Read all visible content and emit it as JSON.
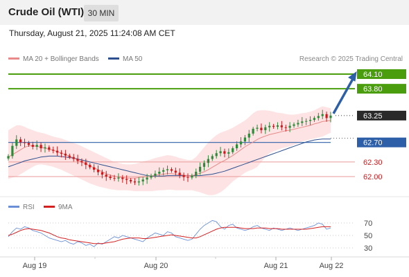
{
  "header": {
    "title": "Crude Oil (WTI)",
    "timeframe": "30 MIN"
  },
  "datetime": "Thursday, August 21, 2025 11:24:08 AM CET",
  "legend": {
    "ma20": {
      "label": "MA 20 + Bollinger Bands",
      "color": "#e88a8a"
    },
    "ma50": {
      "label": "MA 50",
      "color": "#2d4f8f"
    },
    "credit": "Research © 2025 Trading Central"
  },
  "rsi_legend": {
    "rsi": {
      "label": "RSI",
      "color": "#6a8fd8"
    },
    "ma9": {
      "label": "9MA",
      "color": "#d62020"
    }
  },
  "colors": {
    "up": "#2e8b3a",
    "down": "#d0181a",
    "band": "#fde3e3",
    "resistance": "#4a9e0d",
    "current": "#2a2a2a",
    "pivot": "#2d5fa8",
    "support": "#d0181a",
    "arrow": "#2d5fa8"
  },
  "chart_data": {
    "type": "candlestick",
    "y_range": [
      61.75,
      64.25
    ],
    "x_ticks": [
      "Aug 19",
      "Aug 20",
      "Aug 21",
      "Aug 22"
    ],
    "levels": [
      {
        "value": 64.1,
        "label": "64.10",
        "kind": "resistance"
      },
      {
        "value": 63.8,
        "label": "63.80",
        "kind": "resistance"
      },
      {
        "value": 63.25,
        "label": "63.25",
        "kind": "current"
      },
      {
        "value": 62.7,
        "label": "62.70",
        "kind": "pivot"
      },
      {
        "value": 62.3,
        "label": "62.30",
        "kind": "support"
      },
      {
        "value": 62.0,
        "label": "62.00",
        "kind": "support"
      }
    ],
    "prices": [
      62.42,
      62.63,
      62.76,
      62.7,
      62.69,
      62.65,
      62.61,
      62.65,
      62.58,
      62.6,
      62.55,
      62.53,
      62.49,
      62.47,
      62.43,
      62.4,
      62.36,
      62.32,
      62.29,
      62.24,
      62.19,
      62.14,
      62.09,
      62.04,
      62.0,
      61.97,
      61.96,
      61.98,
      61.95,
      61.93,
      61.9,
      61.88,
      61.9,
      61.94,
      61.98,
      62.02,
      62.06,
      62.1,
      62.13,
      62.15,
      62.12,
      62.08,
      62.03,
      61.99,
      61.98,
      62.02,
      62.1,
      62.2,
      62.28,
      62.36,
      62.42,
      62.48,
      62.52,
      62.47,
      62.5,
      62.58,
      62.66,
      62.72,
      62.8,
      62.88,
      62.98,
      63.0,
      62.95,
      63.01,
      63.04,
      63.02,
      63.05,
      63.01,
      63.0,
      63.04,
      63.07,
      63.1,
      63.13,
      63.14,
      63.16,
      63.2,
      63.24,
      63.28,
      63.2,
      63.25
    ],
    "ma20": [
      62.4,
      62.45,
      62.5,
      62.55,
      62.6,
      62.63,
      62.63,
      62.62,
      62.6,
      62.58,
      62.56,
      62.54,
      62.51,
      62.48,
      62.45,
      62.42,
      62.38,
      62.34,
      62.3,
      62.26,
      62.22,
      62.18,
      62.14,
      62.1,
      62.06,
      62.03,
      62.01,
      61.99,
      61.98,
      61.97,
      61.97,
      61.97,
      61.98,
      61.99,
      62.0,
      62.01,
      62.03,
      62.04,
      62.05,
      62.06,
      62.06,
      62.05,
      62.04,
      62.03,
      62.02,
      62.02,
      62.04,
      62.07,
      62.1,
      62.14,
      62.19,
      62.24,
      62.29,
      62.33,
      62.38,
      62.43,
      62.49,
      62.55,
      62.61,
      62.66,
      62.71,
      62.76,
      62.8,
      62.83,
      62.86,
      62.88,
      62.9,
      62.92,
      62.94,
      62.95,
      62.97,
      62.99,
      63.01,
      63.03,
      63.05,
      63.08,
      63.1,
      63.13,
      63.14,
      63.15
    ],
    "bb_upper": [
      62.95,
      63.0,
      63.05,
      63.05,
      63.02,
      62.98,
      62.95,
      62.92,
      62.9,
      62.88,
      62.85,
      62.82,
      62.8,
      62.78,
      62.75,
      62.72,
      62.69,
      62.66,
      62.62,
      62.58,
      62.54,
      62.5,
      62.46,
      62.42,
      62.38,
      62.34,
      62.3,
      62.28,
      62.26,
      62.25,
      62.25,
      62.26,
      62.28,
      62.31,
      62.33,
      62.35,
      62.38,
      62.4,
      62.42,
      62.44,
      62.43,
      62.41,
      62.38,
      62.36,
      62.34,
      62.34,
      62.4,
      62.5,
      62.6,
      62.7,
      62.78,
      62.85,
      62.9,
      62.93,
      62.96,
      63.0,
      63.05,
      63.1,
      63.15,
      63.22,
      63.3,
      63.35,
      63.36,
      63.36,
      63.35,
      63.33,
      63.31,
      63.3,
      63.28,
      63.27,
      63.27,
      63.28,
      63.3,
      63.31,
      63.33,
      63.36,
      63.4,
      63.44,
      63.42,
      63.4
    ],
    "bb_lower": [
      61.95,
      61.98,
      62.0,
      62.05,
      62.1,
      62.15,
      62.2,
      62.24,
      62.25,
      62.24,
      62.22,
      62.2,
      62.17,
      62.14,
      62.1,
      62.06,
      62.02,
      61.98,
      61.94,
      61.9,
      61.86,
      61.83,
      61.8,
      61.78,
      61.76,
      61.74,
      61.73,
      61.72,
      61.72,
      61.72,
      61.71,
      61.7,
      61.7,
      61.7,
      61.7,
      61.7,
      61.71,
      61.72,
      61.72,
      61.73,
      61.73,
      61.72,
      61.72,
      61.72,
      61.72,
      61.72,
      61.7,
      61.68,
      61.65,
      61.62,
      61.62,
      61.64,
      61.68,
      61.74,
      61.82,
      61.9,
      61.96,
      62.02,
      62.08,
      62.12,
      62.15,
      62.2,
      62.3,
      62.4,
      62.48,
      62.52,
      62.55,
      62.58,
      62.6,
      62.62,
      62.65,
      62.68,
      62.72,
      62.74,
      62.76,
      62.78,
      62.8,
      62.82,
      62.86,
      62.9
    ],
    "ma50": [
      62.2,
      62.23,
      62.26,
      62.29,
      62.32,
      62.34,
      62.36,
      62.38,
      62.4,
      62.41,
      62.42,
      62.42,
      62.42,
      62.41,
      62.4,
      62.39,
      62.38,
      62.36,
      62.34,
      62.32,
      62.3,
      62.28,
      62.26,
      62.24,
      62.22,
      62.2,
      62.18,
      62.16,
      62.14,
      62.12,
      62.1,
      62.08,
      62.06,
      62.04,
      62.02,
      62.01,
      62.01,
      62.01,
      62.01,
      62.02,
      62.02,
      62.02,
      62.02,
      62.02,
      62.02,
      62.02,
      62.02,
      62.02,
      62.03,
      62.04,
      62.05,
      62.07,
      62.09,
      62.11,
      62.14,
      62.17,
      62.2,
      62.23,
      62.26,
      62.29,
      62.32,
      62.35,
      62.38,
      62.41,
      62.44,
      62.47,
      62.5,
      62.53,
      62.56,
      62.59,
      62.62,
      62.65,
      62.68,
      62.71,
      62.73,
      62.75,
      62.76,
      62.77,
      62.77,
      62.77
    ],
    "rsi": {
      "y_ticks": [
        70,
        50,
        30
      ],
      "rsi": [
        48,
        56,
        62,
        60,
        64,
        62,
        58,
        56,
        54,
        50,
        46,
        44,
        42,
        40,
        42,
        38,
        36,
        40,
        38,
        34,
        36,
        32,
        38,
        36,
        40,
        44,
        48,
        46,
        50,
        48,
        46,
        44,
        42,
        40,
        46,
        50,
        54,
        52,
        50,
        56,
        54,
        48,
        46,
        44,
        42,
        44,
        52,
        60,
        66,
        70,
        74,
        72,
        64,
        60,
        66,
        68,
        62,
        60,
        58,
        60,
        64,
        66,
        62,
        60,
        58,
        62,
        60,
        58,
        60,
        62,
        60,
        58,
        60,
        62,
        64,
        66,
        70,
        68,
        60,
        62
      ],
      "ma9": [
        50,
        52,
        55,
        58,
        60,
        61,
        60,
        59,
        58,
        56,
        54,
        51,
        48,
        46,
        45,
        43,
        42,
        41,
        40,
        39,
        38,
        37,
        37,
        37,
        38,
        39,
        40,
        42,
        44,
        45,
        46,
        46,
        46,
        45,
        45,
        46,
        47,
        48,
        49,
        50,
        51,
        50,
        49,
        48,
        47,
        46,
        46,
        48,
        51,
        54,
        57,
        60,
        62,
        63,
        63,
        63,
        63,
        62,
        61,
        61,
        61,
        62,
        62,
        62,
        61,
        61,
        61,
        60,
        60,
        60,
        60,
        60,
        60,
        60,
        61,
        62,
        63,
        64,
        64,
        64
      ]
    }
  }
}
